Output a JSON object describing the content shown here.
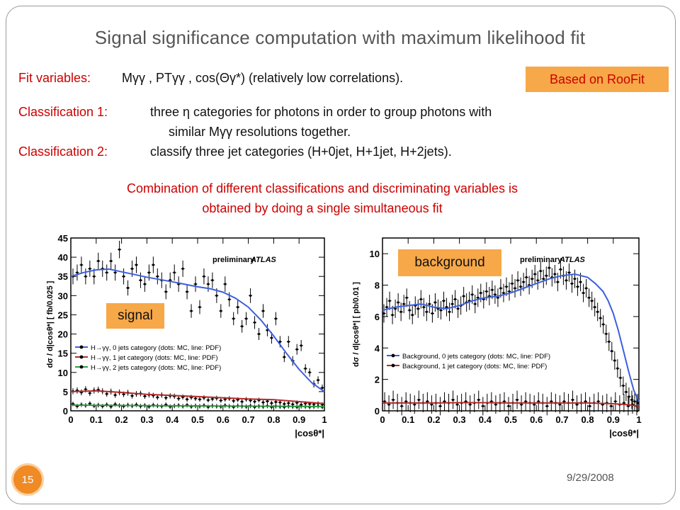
{
  "slide": {
    "title": "Signal significance computation with maximum likelihood fit",
    "fit_label": "Fit variables:",
    "fit_text": "Mγγ , PTγγ ,  cos(Θγ*)   (relatively low correlations).",
    "roofit": "Based on RooFit",
    "class1_label": "Classification 1:",
    "class1_text": "three η  categories for photons in order to group photons with",
    "class1_text2": "similar Mγγ resolutions together.",
    "class2_label": "Classification 2:",
    "class2_text": "classify three jet categories (H+0jet, H+1jet, H+2jets).",
    "combo1": "Combination of different classifications and discriminating variables is",
    "combo2": "obtained by doing a single simultaneous fit",
    "slide_number": "15",
    "date": "9/29/2008",
    "signal_tag": "signal",
    "background_tag": "background",
    "accent_color": "#f7a848",
    "text_red": "#cc0000"
  },
  "chart_data": [
    {
      "type": "scatter",
      "preliminary": "preliminary",
      "experiment": "ATLAS",
      "ylabel": "dσ / d|cosθ*|  [ fb/0.025 ]",
      "xlabel": "|cosθ*|",
      "xlim": [
        0,
        1
      ],
      "ylim": [
        0,
        45
      ],
      "xticks": [
        "0",
        "0.1",
        "0.2",
        "0.3",
        "0.4",
        "0.5",
        "0.6",
        "0.7",
        "0.8",
        "0.9",
        "1"
      ],
      "yticks": [
        "0",
        "5",
        "10",
        "15",
        "20",
        "25",
        "30",
        "35",
        "40",
        "45"
      ],
      "legend": [
        "H→γγ, 0 jets category (dots: MC, line: PDF)",
        "H→γγ, 1 jet category (dots: MC, line: PDF)",
        "H→γγ, 2 jets category (dots: MC, line: PDF)"
      ],
      "series": [
        {
          "name": "H→γγ, 0 jets category (dots: MC, line: PDF)",
          "color": "#3c5fe0",
          "pdf_x": [
            0,
            0.05,
            0.1,
            0.15,
            0.2,
            0.3,
            0.4,
            0.5,
            0.55,
            0.6,
            0.65,
            0.7,
            0.75,
            0.8,
            0.85,
            0.9,
            0.95,
            1
          ],
          "pdf_y": [
            35,
            36,
            36.7,
            36.9,
            36.2,
            34.8,
            33.6,
            32.3,
            31.8,
            30.9,
            29.3,
            27,
            23.6,
            19.5,
            15,
            10.8,
            7.3,
            5
          ],
          "dots": [
            35,
            36,
            38,
            35,
            37,
            35,
            39,
            37,
            36,
            39,
            36,
            42,
            35,
            32,
            37,
            38,
            34,
            33,
            36,
            38,
            35,
            34,
            31,
            34,
            36,
            33,
            37,
            31,
            26,
            33,
            27,
            35,
            33,
            34,
            30,
            26,
            33,
            29,
            24,
            27,
            22,
            24,
            30,
            23,
            20,
            26,
            21,
            19,
            24,
            18,
            14,
            18,
            13,
            16,
            17,
            11,
            10,
            7,
            8,
            6
          ]
        },
        {
          "name": "H→γγ, 1 jet category (dots: MC, line: PDF)",
          "color": "#b52a2a",
          "pdf_x": [
            0,
            0.1,
            0.2,
            0.3,
            0.4,
            0.5,
            0.6,
            0.7,
            0.8,
            0.9,
            1
          ],
          "pdf_y": [
            5,
            5.2,
            4.8,
            4.3,
            4,
            3.7,
            3.4,
            3.1,
            2.9,
            2.4,
            1.9
          ],
          "dots": [
            5.1,
            5.3,
            4.8,
            5.6,
            4.6,
            5.3,
            5.5,
            5.1,
            4.4,
            5.0,
            4.1,
            4.8,
            4.3,
            4.7,
            3.9,
            4.4,
            4.5,
            3.8,
            4.2,
            4.0,
            3.5,
            4.1,
            3.4,
            3.9,
            3.8,
            3.2,
            3.6,
            3.0,
            3.5,
            3.2,
            3.0,
            3.4,
            2.8,
            3.1,
            3.3,
            2.7,
            3.0,
            3.2,
            2.6,
            2.9,
            2.4,
            3.0,
            2.7,
            2.4,
            2.8,
            2.2,
            2.5,
            2.0,
            2.3,
            2.2,
            1.8,
            2.0,
            1.7,
            2.1,
            1.6,
            1.9,
            1.8,
            1.7,
            1.9,
            1.6
          ]
        },
        {
          "name": "H→γγ, 2 jets category (dots: MC, line: PDF)",
          "color": "#2e9e3e",
          "pdf_x": [
            0,
            0.2,
            0.4,
            0.6,
            0.8,
            1
          ],
          "pdf_y": [
            1.5,
            1.4,
            1.3,
            1.25,
            1.2,
            1.1
          ],
          "dots": [
            1.8,
            1.2,
            1.6,
            1.4,
            1.9,
            1.3,
            1.5,
            1.2,
            1.6,
            1.1,
            1.7,
            1.4,
            1.2,
            1.5,
            1.3,
            1.6,
            1.2,
            1.4,
            1.1,
            1.5,
            1.3,
            1.2,
            1.6,
            1.1,
            1.3,
            1.4,
            1.2,
            1.5,
            1.1,
            1.3,
            1.2,
            1.4,
            1.0,
            1.3,
            1.2,
            1.1,
            1.4,
            1.2,
            1.0,
            1.3,
            1.2,
            1.1,
            1.3,
            1.0,
            1.2,
            1.1,
            1.3,
            1.0,
            1.2,
            1.1,
            1.0,
            1.2,
            1.1,
            1.0,
            1.2,
            1.1,
            1.0,
            1.1,
            1.2,
            1.0
          ]
        }
      ]
    },
    {
      "type": "scatter",
      "preliminary": "preliminary",
      "experiment": "ATLAS",
      "ylabel": "dσ / d|cosθ*|  [ pb/0.01 ]",
      "xlabel": "|cosθ*|",
      "xlim": [
        0,
        1
      ],
      "ylim": [
        0,
        11
      ],
      "xticks": [
        "0",
        "0.1",
        "0.2",
        "0.3",
        "0.4",
        "0.5",
        "0.6",
        "0.7",
        "0.8",
        "0.9",
        "1"
      ],
      "yticks": [
        "0",
        "2",
        "4",
        "6",
        "8",
        "10"
      ],
      "legend": [
        "Background, 0 jets category (dots: MC, line: PDF)",
        "Background, 1 jet category (dots: MC, line: PDF)"
      ],
      "series": [
        {
          "name": "Background, 0 jets category (dots: MC, line: PDF)",
          "color": "#3c5fe0",
          "pdf_x": [
            0,
            0.05,
            0.1,
            0.15,
            0.2,
            0.25,
            0.3,
            0.35,
            0.4,
            0.45,
            0.5,
            0.55,
            0.6,
            0.65,
            0.7,
            0.75,
            0.8,
            0.83,
            0.86,
            0.88,
            0.9,
            0.92,
            0.94,
            0.96,
            0.98,
            1
          ],
          "pdf_y": [
            6.4,
            6.6,
            6.7,
            6.8,
            6.6,
            6.5,
            6.7,
            7.0,
            7.2,
            7.3,
            7.5,
            7.8,
            8.1,
            8.4,
            8.6,
            8.7,
            8.5,
            8.1,
            7.6,
            7.0,
            6.2,
            5.1,
            3.8,
            2.5,
            1.3,
            0.6
          ],
          "dots": [
            6.2,
            6.6,
            7.0,
            6.1,
            6.5,
            6.9,
            6.3,
            6.8,
            7.2,
            6.4,
            6.1,
            6.7,
            6.5,
            7.1,
            6.6,
            6.3,
            6.8,
            6.2,
            6.9,
            6.5,
            6.4,
            7.0,
            6.6,
            6.3,
            6.8,
            7.1,
            6.5,
            6.7,
            7.3,
            6.9,
            7.0,
            7.4,
            6.8,
            7.2,
            7.5,
            7.1,
            7.6,
            7.3,
            7.7,
            7.4,
            7.2,
            7.8,
            7.5,
            7.9,
            7.6,
            8.1,
            7.8,
            8.3,
            7.9,
            8.2,
            8.5,
            8.0,
            8.4,
            8.7,
            8.3,
            8.9,
            8.4,
            8.6,
            9.1,
            8.5,
            8.7,
            8.2,
            9.0,
            8.6,
            8.3,
            8.8,
            8.1,
            8.4,
            7.9,
            8.2,
            7.5,
            7.8,
            7.2,
            7.0,
            6.6,
            6.3,
            5.9,
            5.5,
            4.9,
            4.4,
            3.8,
            3.2,
            2.7,
            2.1,
            1.6,
            1.2,
            0.9,
            0.7,
            0.6,
            0.5
          ]
        },
        {
          "name": "Background, 1 jet category (dots: MC, line: PDF)",
          "color": "#b52a2a",
          "pdf_x": [
            0,
            0.1,
            0.2,
            0.3,
            0.4,
            0.5,
            0.6,
            0.7,
            0.8,
            0.9,
            0.95,
            1
          ],
          "pdf_y": [
            0.5,
            0.5,
            0.5,
            0.52,
            0.52,
            0.5,
            0.5,
            0.5,
            0.5,
            0.45,
            0.4,
            0.3
          ],
          "dots": [
            0.6,
            0.4,
            0.7,
            0.5,
            0.3,
            0.6,
            0.5,
            0.4,
            0.7,
            0.5,
            0.6,
            0.4,
            0.5,
            0.3,
            0.6,
            0.5,
            0.7,
            0.4,
            0.5,
            0.6,
            0.4,
            0.5,
            0.7,
            0.3,
            0.5,
            0.6,
            0.4,
            0.5,
            0.6,
            0.3,
            0.5,
            0.7,
            0.4,
            0.6,
            0.5,
            0.4,
            0.6,
            0.5,
            0.3,
            0.6,
            0.5,
            0.4,
            0.6,
            0.5,
            0.7,
            0.4,
            0.5,
            0.6,
            0.3,
            0.5,
            0.6,
            0.4,
            0.5,
            0.3,
            0.6,
            0.4,
            0.5,
            0.3,
            0.4,
            0.3
          ]
        }
      ]
    }
  ]
}
